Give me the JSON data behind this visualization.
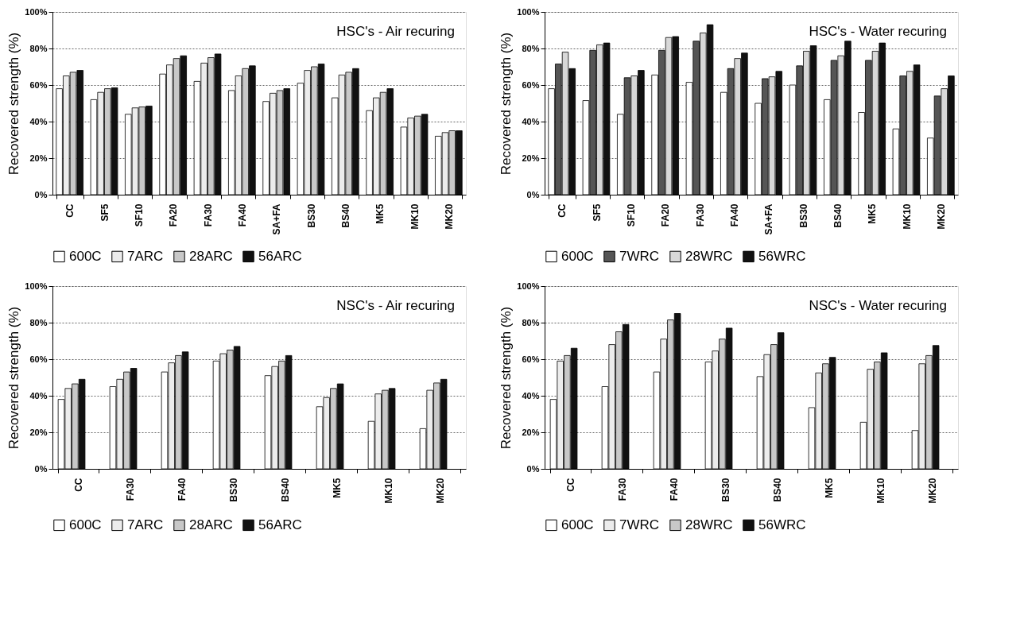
{
  "chart_data": [
    {
      "type": "bar",
      "title": "HSC's - Air recuring",
      "ylabel": "Recovered strength (%)",
      "categories": [
        "CC",
        "SF5",
        "SF10",
        "FA20",
        "FA30",
        "FA40",
        "SA+FA",
        "BS30",
        "BS40",
        "MK5",
        "MK10",
        "MK20"
      ],
      "series": [
        {
          "name": "600C",
          "color": "#ffffff",
          "values": [
            58,
            52,
            44,
            66,
            62,
            57,
            51,
            61,
            53,
            46,
            37,
            32
          ]
        },
        {
          "name": "7ARC",
          "color": "#ececec",
          "values": [
            65,
            56,
            47.5,
            71,
            72,
            65,
            55.5,
            68,
            65.5,
            53,
            42,
            34
          ]
        },
        {
          "name": "28ARC",
          "color": "#c8c8c8",
          "values": [
            67,
            58,
            48,
            74.5,
            75,
            69,
            57,
            70,
            67,
            56,
            43,
            35
          ]
        },
        {
          "name": "56ARC",
          "color": "#111111",
          "values": [
            68,
            58.5,
            48.5,
            76,
            77,
            70.5,
            58,
            71.5,
            69,
            58,
            44,
            35
          ]
        }
      ],
      "ylim": [
        0,
        100
      ],
      "yticks": [
        {
          "value": 0,
          "label": "0%"
        },
        {
          "value": 20,
          "label": "20%"
        },
        {
          "value": 40,
          "label": "40%"
        },
        {
          "value": 60,
          "label": "60%"
        },
        {
          "value": 80,
          "label": "80%"
        },
        {
          "value": 100,
          "label": "100%"
        }
      ],
      "grid": "y",
      "legend": "bottom"
    },
    {
      "type": "bar",
      "title": "HSC's - Water recuring",
      "ylabel": "Recovered strength (%)",
      "categories": [
        "CC",
        "SF5",
        "SF10",
        "FA20",
        "FA30",
        "FA40",
        "SA+FA",
        "BS30",
        "BS40",
        "MK5",
        "MK10",
        "MK20"
      ],
      "series": [
        {
          "name": "600C",
          "color": "#ffffff",
          "values": [
            58,
            51.5,
            44,
            65.5,
            61.5,
            56,
            50,
            60,
            52,
            45,
            36,
            31
          ]
        },
        {
          "name": "7WRC",
          "color": "#555555",
          "values": [
            71.5,
            79,
            64,
            79,
            84,
            69,
            63.5,
            70.5,
            73.5,
            73.5,
            65,
            54
          ]
        },
        {
          "name": "28WRC",
          "color": "#d8d8d8",
          "values": [
            78,
            82,
            65,
            86,
            88.5,
            74.5,
            64.5,
            78.5,
            76,
            78.5,
            67.5,
            58
          ]
        },
        {
          "name": "56WRC",
          "color": "#111111",
          "values": [
            69,
            83,
            68,
            86.5,
            93,
            77.5,
            67.5,
            81.5,
            84,
            83,
            71,
            65
          ]
        }
      ],
      "ylim": [
        0,
        100
      ],
      "yticks": [
        {
          "value": 0,
          "label": "0%"
        },
        {
          "value": 20,
          "label": "20%"
        },
        {
          "value": 40,
          "label": "40%"
        },
        {
          "value": 60,
          "label": "60%"
        },
        {
          "value": 80,
          "label": "80%"
        },
        {
          "value": 100,
          "label": "100%"
        }
      ],
      "grid": "y",
      "legend": "bottom"
    },
    {
      "type": "bar",
      "title": "NSC's - Air recuring",
      "ylabel": "Recovered strength (%)",
      "categories": [
        "CC",
        "FA30",
        "FA40",
        "BS30",
        "BS40",
        "MK5",
        "MK10",
        "MK20"
      ],
      "series": [
        {
          "name": "600C",
          "color": "#ffffff",
          "values": [
            38,
            45,
            53,
            59,
            51,
            34,
            26,
            22
          ]
        },
        {
          "name": "7ARC",
          "color": "#ececec",
          "values": [
            44,
            49,
            58,
            63,
            56,
            39,
            41,
            43
          ]
        },
        {
          "name": "28ARC",
          "color": "#c8c8c8",
          "values": [
            46.5,
            53,
            62,
            65,
            59,
            44,
            43,
            47
          ]
        },
        {
          "name": "56ARC",
          "color": "#111111",
          "values": [
            49,
            55,
            64,
            67,
            62,
            46.5,
            44,
            49
          ]
        }
      ],
      "ylim": [
        0,
        100
      ],
      "yticks": [
        {
          "value": 0,
          "label": "0%"
        },
        {
          "value": 20,
          "label": "20%"
        },
        {
          "value": 40,
          "label": "40%"
        },
        {
          "value": 60,
          "label": "60%"
        },
        {
          "value": 80,
          "label": "80%"
        },
        {
          "value": 100,
          "label": "100%"
        }
      ],
      "grid": "y",
      "legend": "bottom"
    },
    {
      "type": "bar",
      "title": "NSC's - Water recuring",
      "ylabel": "Recovered strength (%)",
      "categories": [
        "CC",
        "FA30",
        "FA40",
        "BS30",
        "BS40",
        "MK5",
        "MK10",
        "MK20"
      ],
      "series": [
        {
          "name": "600C",
          "color": "#ffffff",
          "values": [
            38,
            45,
            53,
            58.5,
            50.5,
            33.5,
            25.5,
            21
          ]
        },
        {
          "name": "7WRC",
          "color": "#ececec",
          "values": [
            59,
            68,
            71,
            64.5,
            62.5,
            52.5,
            54.5,
            57.5
          ]
        },
        {
          "name": "28WRC",
          "color": "#c8c8c8",
          "values": [
            62,
            75,
            81.5,
            71,
            68,
            57.5,
            58.5,
            62
          ]
        },
        {
          "name": "56WRC",
          "color": "#111111",
          "values": [
            66,
            79,
            85,
            77,
            74.5,
            61,
            63.5,
            67.5
          ]
        }
      ],
      "ylim": [
        0,
        100
      ],
      "yticks": [
        {
          "value": 0,
          "label": "0%"
        },
        {
          "value": 20,
          "label": "20%"
        },
        {
          "value": 40,
          "label": "40%"
        },
        {
          "value": 60,
          "label": "60%"
        },
        {
          "value": 80,
          "label": "80%"
        },
        {
          "value": 100,
          "label": "100%"
        }
      ],
      "grid": "y",
      "legend": "bottom"
    }
  ]
}
